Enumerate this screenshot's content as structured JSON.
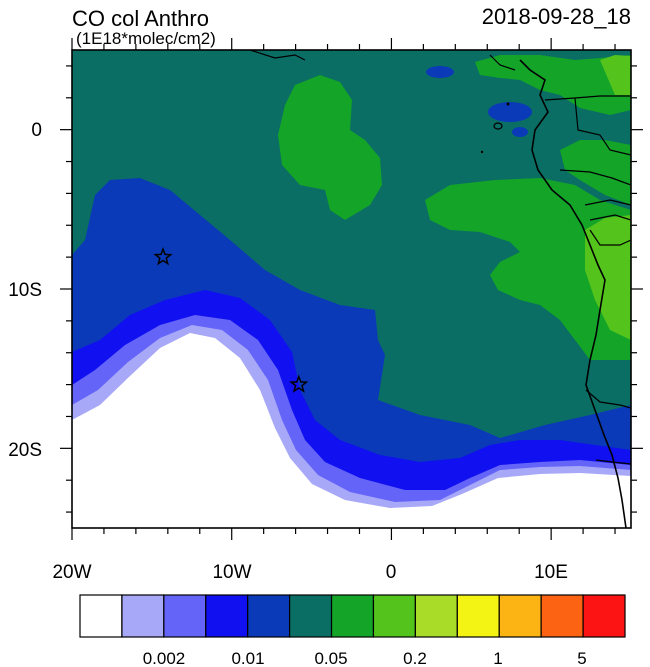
{
  "title": "CO col Anthro",
  "units": "(1E18*molec/cm2)",
  "timestamp": "2018-09-28_18",
  "axes": {
    "x_ticks": [
      "20W",
      "10W",
      "0",
      "10E"
    ],
    "y_ticks": [
      "0",
      "10S",
      "20S"
    ]
  },
  "colorbar": {
    "colors": [
      "#ffffff",
      "#a8a8f8",
      "#6464f8",
      "#1010f0",
      "#0a3ab8",
      "#0a6e64",
      "#14a428",
      "#54c41c",
      "#a8dc28",
      "#f4f414",
      "#fcb414",
      "#fc6414",
      "#fc1414"
    ],
    "labels": [
      "0.002",
      "0.01",
      "0.05",
      "0.2",
      "1",
      "5"
    ]
  },
  "markers": [
    {
      "name": "star",
      "lon": -14.3,
      "lat": -8.0
    },
    {
      "name": "star",
      "lon": -5.8,
      "lat": -16.0
    }
  ]
}
